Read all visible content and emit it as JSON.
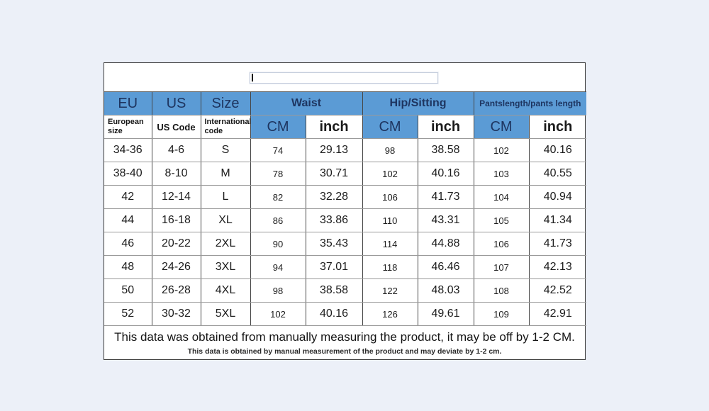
{
  "page": {
    "background": "#ecf0f8"
  },
  "colors": {
    "header_blue": "#5b9bd5",
    "header_text_navy": "#1e3560",
    "border_dark": "#474747",
    "border_light": "#9a9a9a"
  },
  "title_box": {
    "value": ""
  },
  "size_chart": {
    "groups": [
      {
        "label": "EU"
      },
      {
        "label": "US"
      },
      {
        "label": "Size"
      },
      {
        "label": "Waist"
      },
      {
        "label": "Hip/Sitting"
      },
      {
        "label": "Pantslength/pants length"
      }
    ],
    "subheaders": [
      "European size",
      "US Code",
      "International code",
      "CM",
      "inch",
      "CM",
      "inch",
      "CM",
      "inch"
    ],
    "rows": [
      [
        "34-36",
        "4-6",
        "S",
        "74",
        "29.13",
        "98",
        "38.58",
        "102",
        "40.16"
      ],
      [
        "38-40",
        "8-10",
        "M",
        "78",
        "30.71",
        "102",
        "40.16",
        "103",
        "40.55"
      ],
      [
        "42",
        "12-14",
        "L",
        "82",
        "32.28",
        "106",
        "41.73",
        "104",
        "40.94"
      ],
      [
        "44",
        "16-18",
        "XL",
        "86",
        "33.86",
        "110",
        "43.31",
        "105",
        "41.34"
      ],
      [
        "46",
        "20-22",
        "2XL",
        "90",
        "35.43",
        "114",
        "44.88",
        "106",
        "41.73"
      ],
      [
        "48",
        "24-26",
        "3XL",
        "94",
        "37.01",
        "118",
        "46.46",
        "107",
        "42.13"
      ],
      [
        "50",
        "26-28",
        "4XL",
        "98",
        "38.58",
        "122",
        "48.03",
        "108",
        "42.52"
      ],
      [
        "52",
        "30-32",
        "5XL",
        "102",
        "40.16",
        "126",
        "49.61",
        "109",
        "42.91"
      ]
    ],
    "notes": {
      "line1": "This data was obtained from manually measuring the product, it may be off by 1-2 CM.",
      "line2": "This data is obtained by manual measurement of the product and may deviate by 1-2 cm."
    }
  }
}
